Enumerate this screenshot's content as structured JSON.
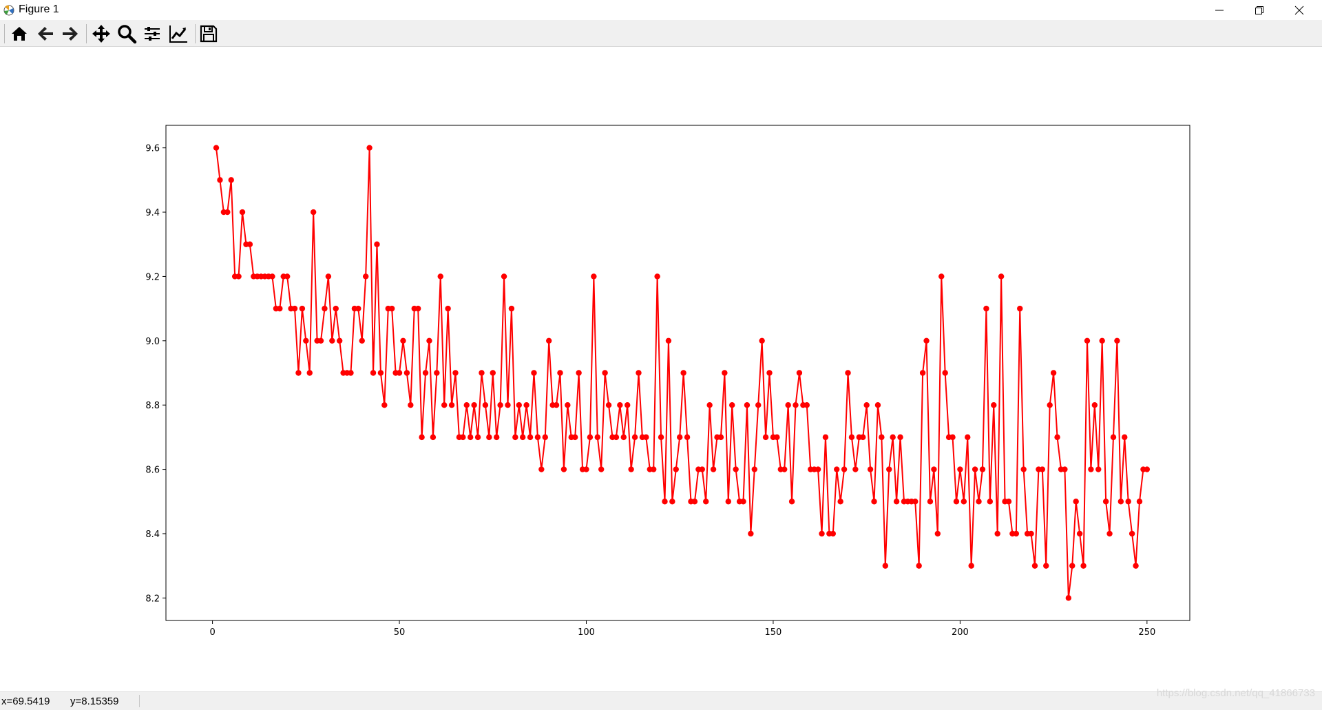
{
  "window": {
    "title": "Figure 1",
    "controls": [
      "minimize-icon",
      "restore-icon",
      "close-icon"
    ]
  },
  "toolbar": {
    "tools": [
      {
        "name": "home",
        "icon": "home-icon"
      },
      {
        "name": "back",
        "icon": "arrow-left-icon"
      },
      {
        "name": "forward",
        "icon": "arrow-right-icon"
      },
      {
        "name": "pan",
        "icon": "move-icon"
      },
      {
        "name": "zoom",
        "icon": "magnifier-icon"
      },
      {
        "name": "subplots",
        "icon": "sliders-icon"
      },
      {
        "name": "edit-axes",
        "icon": "line-chart-icon"
      },
      {
        "name": "save",
        "icon": "floppy-disk-icon"
      }
    ]
  },
  "status": {
    "x_readout": "x=69.5419",
    "y_readout": "y=8.15359"
  },
  "watermark": "https://blog.csdn.net/qq_41866733",
  "colors": {
    "line": "#ff0000",
    "toolbar_bg": "#f0f0f0"
  },
  "chart_data": {
    "type": "line",
    "title": "",
    "xlabel": "",
    "ylabel": "",
    "xlim": [
      -12.45,
      261.45
    ],
    "ylim": [
      8.13,
      9.67
    ],
    "xticks": [
      0,
      50,
      100,
      150,
      200,
      250
    ],
    "yticks": [
      8.2,
      8.4,
      8.6,
      8.8,
      9.0,
      9.2,
      9.4,
      9.6
    ],
    "xtick_labels": [
      "0",
      "50",
      "100",
      "150",
      "200",
      "250"
    ],
    "ytick_labels": [
      "8.2",
      "8.4",
      "8.6",
      "8.8",
      "9.0",
      "9.2",
      "9.4",
      "9.6"
    ],
    "grid": false,
    "marker": "circle",
    "series": [
      {
        "x_start": 1,
        "values": [
          9.6,
          9.5,
          9.4,
          9.4,
          9.5,
          9.2,
          9.2,
          9.4,
          9.3,
          9.3,
          9.2,
          9.2,
          9.2,
          9.2,
          9.2,
          9.2,
          9.1,
          9.1,
          9.2,
          9.2,
          9.1,
          9.1,
          8.9,
          9.1,
          9.0,
          8.9,
          9.4,
          9.0,
          9.0,
          9.1,
          9.2,
          9.0,
          9.1,
          9.0,
          8.9,
          8.9,
          8.9,
          9.1,
          9.1,
          9.0,
          9.2,
          9.6,
          8.9,
          9.3,
          8.9,
          8.8,
          9.1,
          9.1,
          8.9,
          8.9,
          9.0,
          8.9,
          8.8,
          9.1,
          9.1,
          8.7,
          8.9,
          9.0,
          8.7,
          8.9,
          9.2,
          8.8,
          9.1,
          8.8,
          8.9,
          8.7,
          8.7,
          8.8,
          8.7,
          8.8,
          8.7,
          8.9,
          8.8,
          8.7,
          8.9,
          8.7,
          8.8,
          9.2,
          8.8,
          9.1,
          8.7,
          8.8,
          8.7,
          8.8,
          8.7,
          8.9,
          8.7,
          8.6,
          8.7,
          9.0,
          8.8,
          8.8,
          8.9,
          8.6,
          8.8,
          8.7,
          8.7,
          8.9,
          8.6,
          8.6,
          8.7,
          9.2,
          8.7,
          8.6,
          8.9,
          8.8,
          8.7,
          8.7,
          8.8,
          8.7,
          8.8,
          8.6,
          8.7,
          8.9,
          8.7,
          8.7,
          8.6,
          8.6,
          9.2,
          8.7,
          8.5,
          9.0,
          8.5,
          8.6,
          8.7,
          8.9,
          8.7,
          8.5,
          8.5,
          8.6,
          8.6,
          8.5,
          8.8,
          8.6,
          8.7,
          8.7,
          8.9,
          8.5,
          8.8,
          8.6,
          8.5,
          8.5,
          8.8,
          8.4,
          8.6,
          8.8,
          9.0,
          8.7,
          8.9,
          8.7,
          8.7,
          8.6,
          8.6,
          8.8,
          8.5,
          8.8,
          8.9,
          8.8,
          8.8,
          8.6,
          8.6,
          8.6,
          8.4,
          8.7,
          8.4,
          8.4,
          8.6,
          8.5,
          8.6,
          8.9,
          8.7,
          8.6,
          8.7,
          8.7,
          8.8,
          8.6,
          8.5,
          8.8,
          8.7,
          8.3,
          8.6,
          8.7,
          8.5,
          8.7,
          8.5,
          8.5,
          8.5,
          8.5,
          8.3,
          8.9,
          9.0,
          8.5,
          8.6,
          8.4,
          9.2,
          8.9,
          8.7,
          8.7,
          8.5,
          8.6,
          8.5,
          8.7,
          8.3,
          8.6,
          8.5,
          8.6,
          9.1,
          8.5,
          8.8,
          8.4,
          9.2,
          8.5,
          8.5,
          8.4,
          8.4,
          9.1,
          8.6,
          8.4,
          8.4,
          8.3,
          8.6,
          8.6,
          8.3,
          8.8,
          8.9,
          8.7,
          8.6,
          8.6,
          8.2,
          8.3,
          8.5,
          8.4,
          8.3,
          9.0,
          8.6,
          8.8,
          8.6,
          9.0,
          8.5,
          8.4,
          8.7,
          9.0,
          8.5,
          8.7,
          8.5,
          8.4,
          8.3,
          8.5,
          8.6,
          8.6
        ]
      }
    ]
  }
}
